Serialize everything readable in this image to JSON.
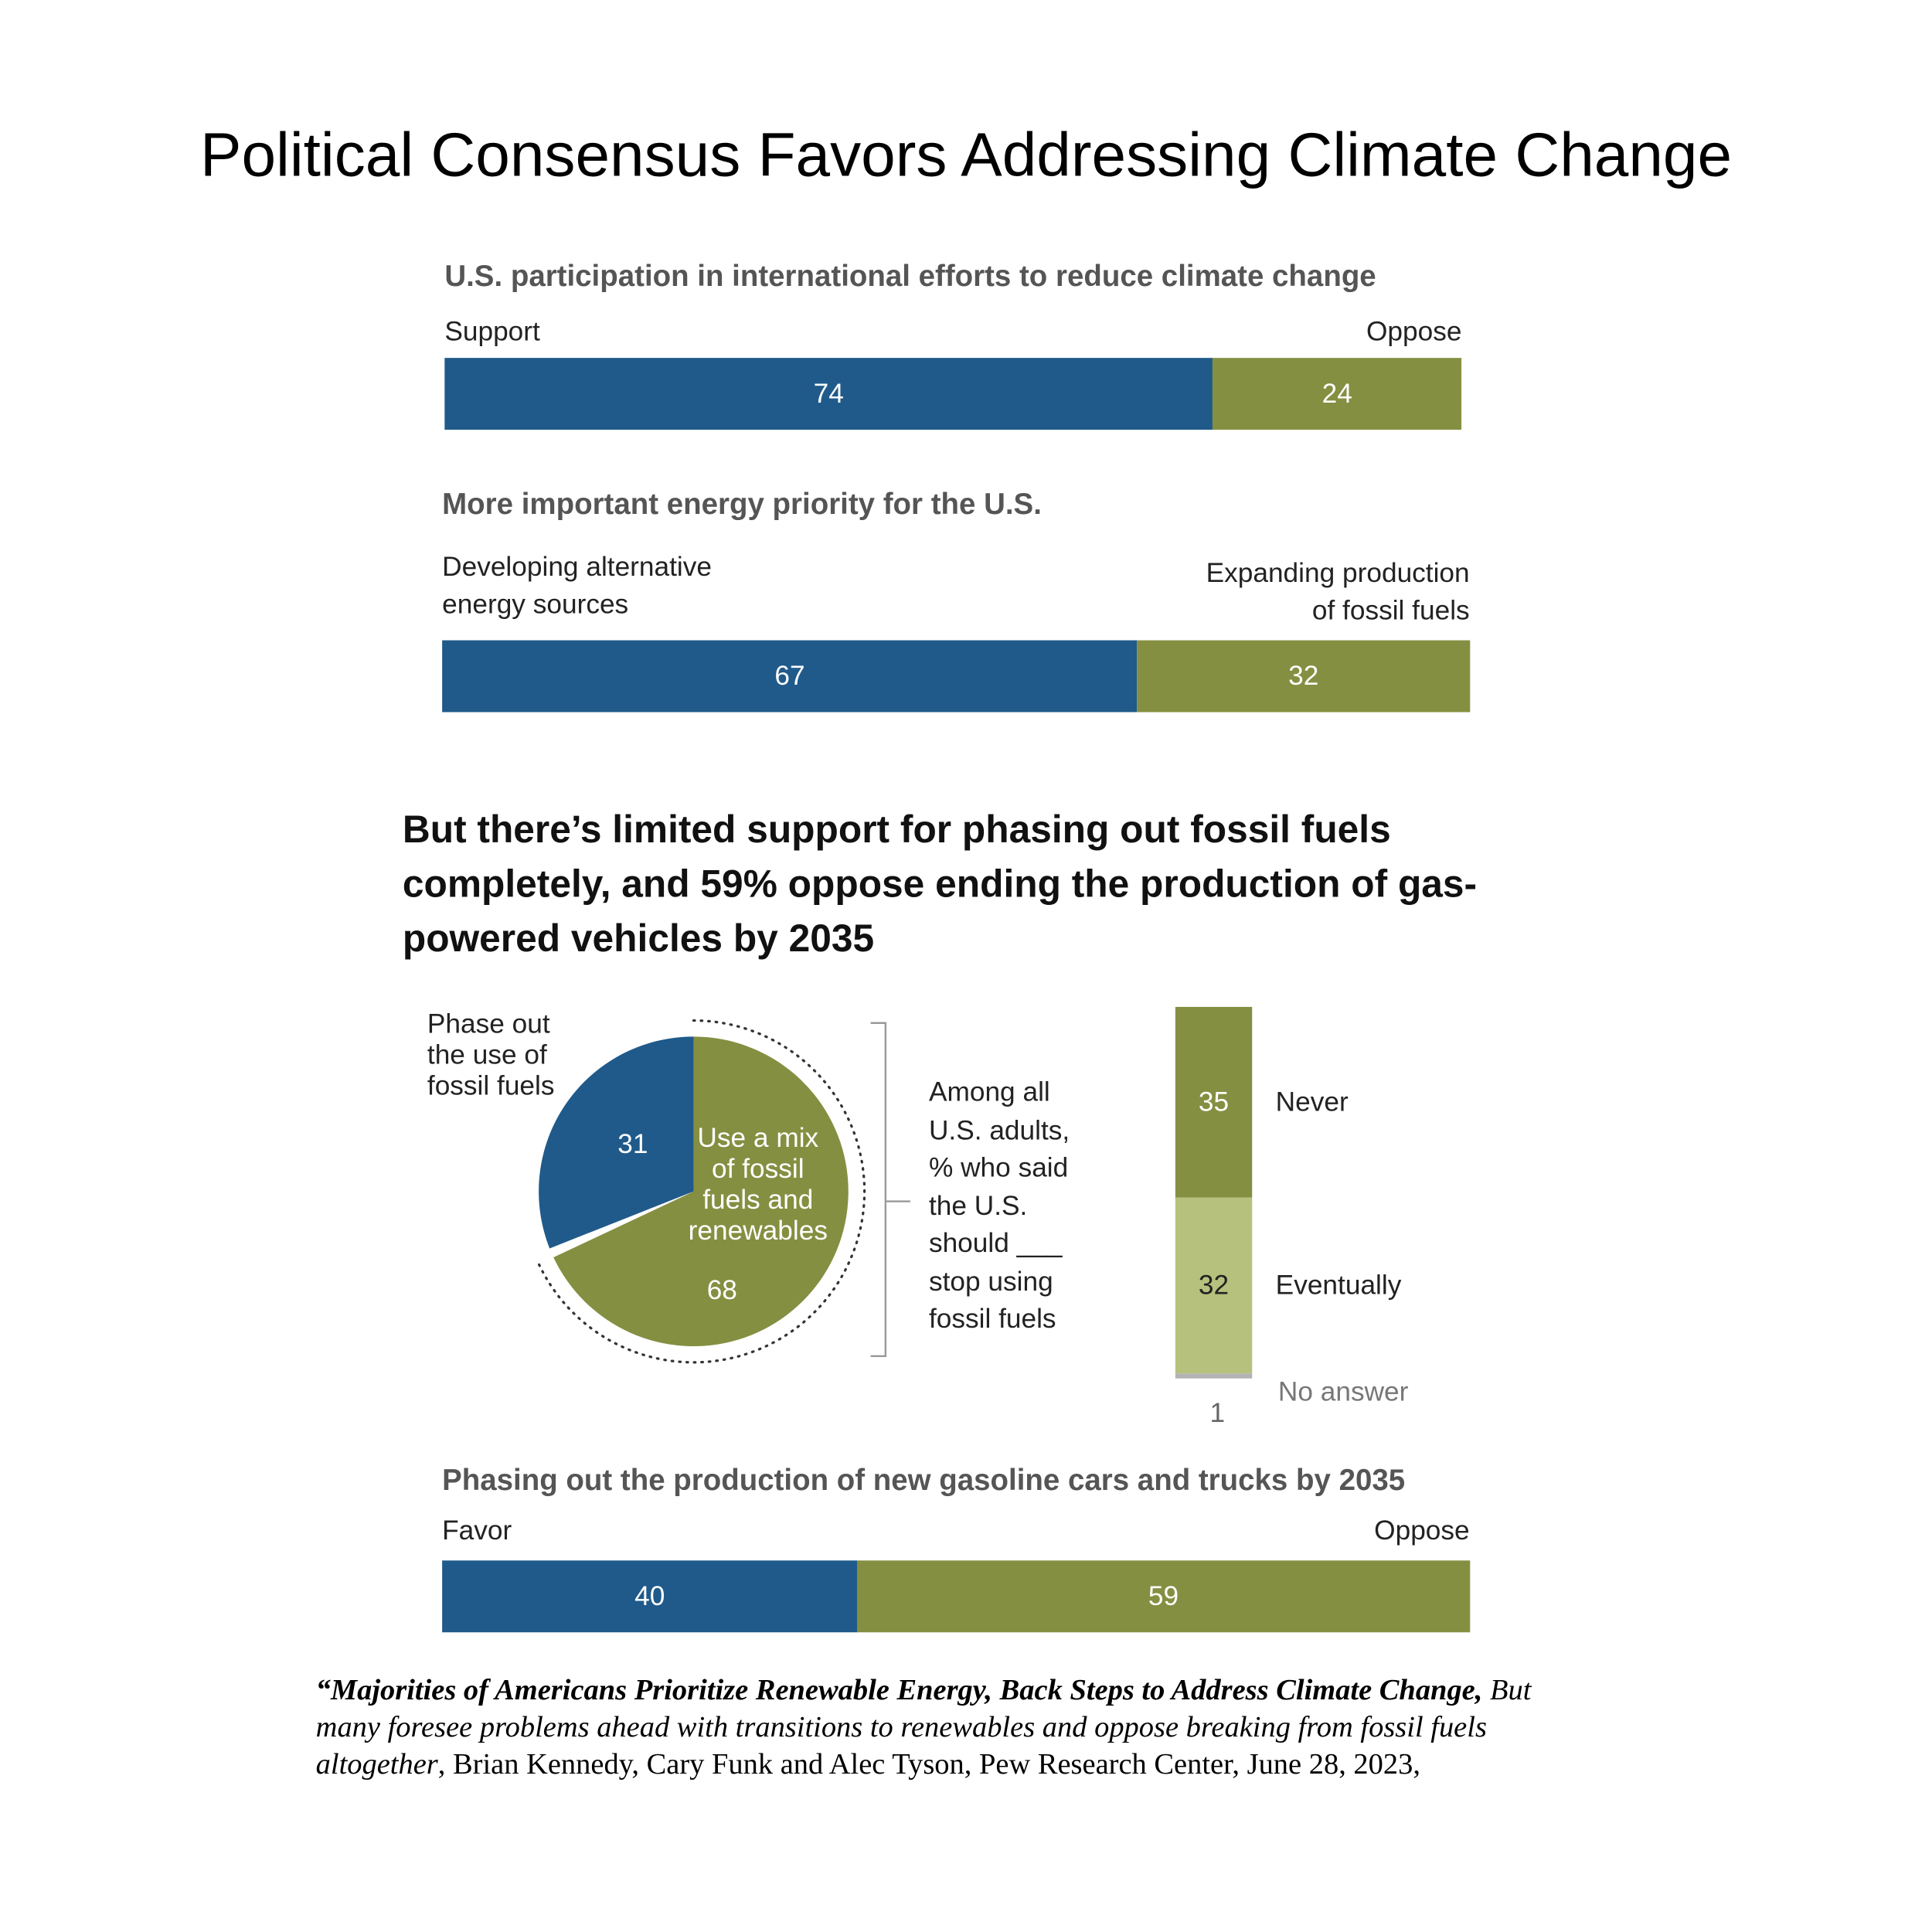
{
  "title": "Political Consensus Favors Addressing Climate Change",
  "headline": "But there’s limited support for phasing out fossil fuels completely, and 59% oppose ending the production of gas-powered vehicles by 2035",
  "chart_data": [
    {
      "type": "stacked_bar",
      "title": "U.S. participation in international efforts to reduce climate change",
      "series": [
        {
          "name": "Support",
          "color": "#1f5a8a",
          "values": [
            74
          ]
        },
        {
          "name": "Oppose",
          "color": "#858f41",
          "values": [
            24
          ]
        }
      ]
    },
    {
      "type": "stacked_bar",
      "title": "More important energy priority for the U.S.",
      "series": [
        {
          "name": "Developing alternative\nenergy sources",
          "color": "#1f5a8a",
          "values": [
            67
          ]
        },
        {
          "name": "Expanding production\nof fossil fuels",
          "color": "#858f41",
          "values": [
            32
          ]
        }
      ]
    },
    {
      "type": "pie",
      "annotation": "Among all\nU.S. adults,\n% who said\nthe U.S.\nshould ___\nstop using\nfossil fuels",
      "categories": [
        "Phase out\nthe use of\nfossil fuels",
        "Use a mix\nof fossil\nfuels and\nrenewables"
      ],
      "values": [
        31,
        68
      ],
      "colors": [
        "#1f5a8a",
        "#858f41"
      ]
    },
    {
      "type": "stacked_column",
      "series": [
        {
          "name": "Never",
          "color": "#858f41",
          "values": [
            35
          ]
        },
        {
          "name": "Eventually",
          "color": "#b6c17d",
          "values": [
            32
          ]
        },
        {
          "name": "No answer",
          "color": "#b3b3b3",
          "values": [
            1
          ]
        }
      ]
    },
    {
      "type": "stacked_bar",
      "title": "Phasing out the production of new gasoline cars and trucks by 2035",
      "series": [
        {
          "name": "Favor",
          "color": "#1f5a8a",
          "values": [
            40
          ]
        },
        {
          "name": "Oppose",
          "color": "#858f41",
          "values": [
            59
          ]
        }
      ]
    }
  ],
  "citation": {
    "title": "“Majorities of Americans Prioritize Renewable Energy, Back Steps to Address Climate Change,",
    "subtitle": "But many foresee problems ahead with transitions to renewables and oppose breaking from fossil fuels altogether",
    "source": ", Brian Kennedy, Cary Funk and Alec Tyson, Pew Research Center, June 28, 2023,"
  }
}
